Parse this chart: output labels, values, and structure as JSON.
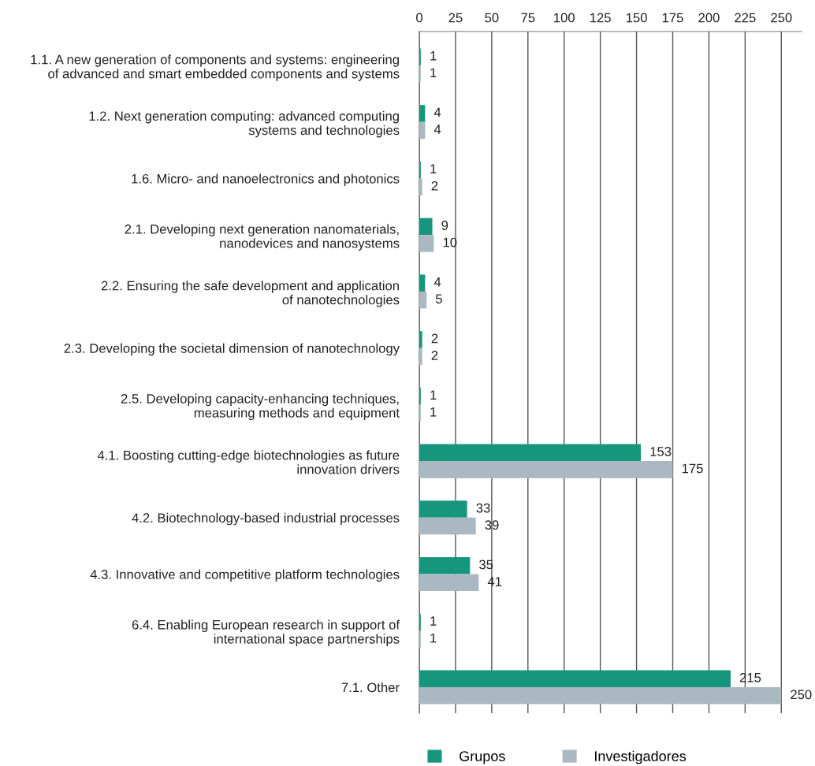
{
  "chart_data": {
    "type": "bar",
    "orientation": "horizontal",
    "categories": [
      "1.1. A new generation of components and systems: engineering\nof advanced and smart embedded components and systems",
      "1.2. Next generation computing: advanced computing\nsystems and technologies",
      "1.6. Micro- and nanoelectronics and photonics",
      "2.1. Developing next generation nanomaterials,\nnanodevices and nanosystems",
      "2.2. Ensuring the safe development and application\nof nanotechnologies",
      "2.3. Developing the societal dimension of nanotechnology",
      "2.5. Developing capacity-enhancing techniques,\nmeasuring methods and equipment",
      "4.1. Boosting cutting-edge biotechnologies as future\ninnovation drivers",
      "4.2. Biotechnology-based industrial processes",
      "4.3. Innovative and competitive platform technologies",
      "6.4. Enabling European research in support of\ninternational space partnerships",
      "7.1. Other"
    ],
    "series": [
      {
        "name": "Grupos",
        "color": "#17967e",
        "values": [
          1,
          4,
          1,
          9,
          4,
          2,
          1,
          153,
          33,
          35,
          1,
          215
        ]
      },
      {
        "name": "Investigadores",
        "color": "#aab8c1",
        "values": [
          1,
          4,
          2,
          10,
          5,
          2,
          1,
          175,
          39,
          41,
          1,
          250
        ]
      }
    ],
    "xlim": [
      0,
      264
    ],
    "xticks": [
      0,
      25,
      50,
      75,
      100,
      125,
      150,
      175,
      200,
      225,
      250
    ],
    "grid": "x",
    "data_labels": true,
    "legend": "bottom"
  }
}
